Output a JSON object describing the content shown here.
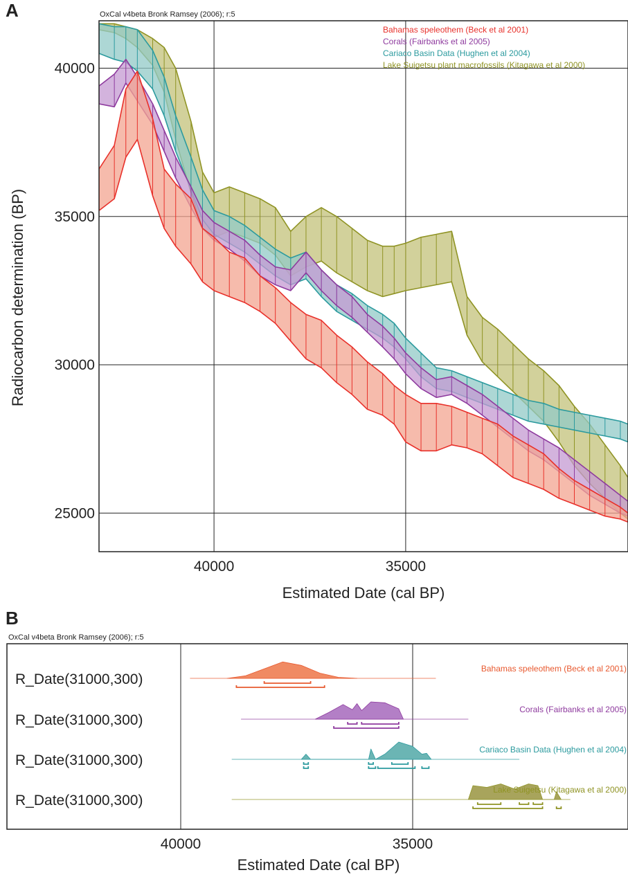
{
  "chart_data": [
    {
      "panel": "A",
      "type": "area",
      "credit": "OxCal v4beta Bronk Ramsey (2006); r:5",
      "xlabel": "Estimated Date (cal BP)",
      "ylabel": "Radiocarbon determination (BP)",
      "xlim": [
        43000,
        29200
      ],
      "ylim": [
        23700,
        41600
      ],
      "xticks": [
        40000,
        35000
      ],
      "yticks": [
        40000,
        35000,
        30000,
        25000
      ],
      "grid": true,
      "legend_position": "top-right",
      "series": [
        {
          "name": "Bahamas speleothem (Beck et al 2001)",
          "color": "#e8302a",
          "fill": "#f3a490",
          "x": [
            43000,
            42600,
            42300,
            42000,
            41600,
            41300,
            41000,
            40600,
            40300,
            40000,
            39600,
            39200,
            38800,
            38400,
            38000,
            37600,
            37200,
            36800,
            36400,
            36000,
            35600,
            35300,
            35000,
            34600,
            34200,
            33800,
            33400,
            33000,
            32600,
            32200,
            31800,
            31400,
            31000,
            30600,
            30200,
            29800,
            29400,
            29200
          ],
          "upper": [
            36600,
            37400,
            39300,
            39900,
            38300,
            36600,
            36100,
            35600,
            34600,
            34300,
            33800,
            33600,
            33000,
            32600,
            32100,
            31700,
            31500,
            31000,
            30600,
            30100,
            29700,
            29300,
            29000,
            28700,
            28700,
            28600,
            28400,
            28200,
            28000,
            27600,
            27300,
            27000,
            26500,
            26100,
            25800,
            25500,
            25200,
            25000
          ],
          "lower": [
            35200,
            35600,
            37000,
            37600,
            35700,
            34600,
            34000,
            33400,
            32800,
            32500,
            32300,
            32100,
            31800,
            31400,
            30800,
            30200,
            29900,
            29400,
            29000,
            28500,
            28300,
            28000,
            27400,
            27100,
            27100,
            27300,
            27200,
            27000,
            26600,
            26200,
            26000,
            25800,
            25500,
            25300,
            25100,
            24900,
            24800,
            24700
          ]
        },
        {
          "name": "Corals (Fairbanks et al 2005)",
          "color": "#8e3a9e",
          "fill": "#c49ad2",
          "x": [
            43000,
            42600,
            42300,
            42000,
            41600,
            41300,
            41000,
            40600,
            40300,
            40000,
            39600,
            39200,
            38800,
            38400,
            38000,
            37600,
            37200,
            36800,
            36400,
            36000,
            35600,
            35300,
            35000,
            34600,
            34200,
            33800,
            33400,
            33000,
            32600,
            32200,
            31800,
            31400,
            31000,
            30600,
            30200,
            29800,
            29400,
            29200
          ],
          "upper": [
            39400,
            39800,
            40300,
            39700,
            38800,
            37900,
            37000,
            36000,
            35200,
            34800,
            34500,
            34200,
            33700,
            33300,
            33200,
            33800,
            33200,
            32700,
            32300,
            31700,
            31300,
            30900,
            30400,
            29900,
            29500,
            29600,
            29300,
            29000,
            28600,
            28200,
            27800,
            27500,
            27200,
            26800,
            26400,
            26000,
            25600,
            25400
          ],
          "lower": [
            38800,
            38700,
            39500,
            38900,
            38100,
            37200,
            36300,
            35300,
            34600,
            34200,
            33900,
            33500,
            33000,
            32700,
            32500,
            33100,
            32500,
            32000,
            31600,
            31100,
            30600,
            30200,
            29700,
            29200,
            28900,
            29000,
            28700,
            28300,
            27900,
            27500,
            27100,
            26800,
            26400,
            26000,
            25600,
            25300,
            25000,
            24900
          ]
        },
        {
          "name": "Cariaco Basin Data (Hughen et al 2004)",
          "color": "#2b9a9e",
          "fill": "#92c9c7",
          "x": [
            43000,
            42600,
            42300,
            42000,
            41600,
            41300,
            41000,
            40600,
            40300,
            40000,
            39600,
            39200,
            38800,
            38400,
            38000,
            37600,
            37200,
            36800,
            36400,
            36000,
            35600,
            35300,
            35000,
            34600,
            34200,
            33800,
            33400,
            33000,
            32600,
            32200,
            31800,
            31400,
            31000,
            30600,
            30200,
            29800,
            29400,
            29200
          ],
          "upper": [
            41500,
            41400,
            41400,
            41300,
            40600,
            39700,
            38400,
            37000,
            35900,
            35200,
            35000,
            34700,
            34300,
            33900,
            33600,
            33800,
            33200,
            32700,
            32400,
            32000,
            31700,
            31400,
            30900,
            30400,
            29900,
            29800,
            29600,
            29400,
            29200,
            29000,
            28800,
            28700,
            28500,
            28400,
            28300,
            28200,
            28100,
            28000
          ],
          "lower": [
            40500,
            40300,
            40200,
            39900,
            39300,
            38400,
            37200,
            35900,
            34900,
            34400,
            34100,
            33800,
            33400,
            33000,
            32700,
            32900,
            32300,
            31800,
            31500,
            31200,
            30900,
            30600,
            30200,
            29600,
            29200,
            29100,
            28900,
            28700,
            28500,
            28300,
            28100,
            28000,
            27900,
            27800,
            27700,
            27600,
            27500,
            27400
          ]
        },
        {
          "name": "Lake Suigetsu plant macrofossils (Kitagawa et al 2000)",
          "color": "#8f9324",
          "fill": "#c3c27a",
          "x": [
            43000,
            42600,
            42300,
            42000,
            41600,
            41300,
            41000,
            40600,
            40300,
            40000,
            39600,
            39200,
            38800,
            38400,
            38000,
            37600,
            37200,
            36800,
            36400,
            36000,
            35600,
            35300,
            35000,
            34600,
            34200,
            33800,
            33400,
            33000,
            32600,
            32200,
            31800,
            31400,
            31000,
            30600,
            30200,
            29800,
            29400,
            29200
          ],
          "upper": [
            41500,
            41500,
            41400,
            41300,
            41000,
            40700,
            40000,
            38200,
            36500,
            35800,
            36000,
            35800,
            35600,
            35300,
            34500,
            35000,
            35300,
            35000,
            34600,
            34200,
            34000,
            34000,
            34100,
            34300,
            34400,
            34500,
            32300,
            31600,
            31200,
            30700,
            30200,
            29800,
            29300,
            28600,
            28000,
            27300,
            26600,
            26200
          ],
          "lower": [
            41300,
            41200,
            41000,
            40700,
            40100,
            39200,
            37600,
            35800,
            34600,
            34300,
            34500,
            34300,
            34100,
            33700,
            33000,
            33300,
            33500,
            33100,
            32800,
            32500,
            32300,
            32400,
            32500,
            32600,
            32700,
            32800,
            31000,
            30100,
            29600,
            29100,
            28600,
            28100,
            27400,
            26600,
            26000,
            25500,
            25000,
            24800
          ]
        }
      ]
    },
    {
      "panel": "B",
      "type": "area",
      "credit": "OxCal v4beta Bronk Ramsey (2006); r:5",
      "xlabel": "Estimated Date (cal BP)",
      "xlim": [
        43000,
        29200
      ],
      "xticks": [
        40000,
        35000
      ],
      "grid": true,
      "rows": [
        {
          "label": "R_Date(31000,300)",
          "name": "Bahamas speleothem (Beck et al 2001)",
          "color": "#e8592f",
          "fill": "#f08a63",
          "line_range": [
            39800,
            34500
          ],
          "density": [
            [
              39000,
              0
            ],
            [
              38600,
              0.15
            ],
            [
              38200,
              0.55
            ],
            [
              37800,
              0.95
            ],
            [
              37400,
              0.75
            ],
            [
              37000,
              0.3
            ],
            [
              36600,
              0.06
            ],
            [
              36200,
              0
            ]
          ],
          "brackets": [
            [
              [
                38200,
                37200
              ]
            ],
            [
              [
                38800,
                36900
              ]
            ]
          ]
        },
        {
          "label": "R_Date(31000,300)",
          "name": "Corals (Fairbanks et al 2005)",
          "color": "#8e3a9e",
          "fill": "#b37fc6",
          "line_range": [
            38700,
            33800
          ],
          "density": [
            [
              37100,
              0
            ],
            [
              36800,
              0.4
            ],
            [
              36500,
              0.85
            ],
            [
              36300,
              0.55
            ],
            [
              36200,
              0.9
            ],
            [
              36100,
              0.5
            ],
            [
              35900,
              1.0
            ],
            [
              35600,
              0.95
            ],
            [
              35300,
              0.6
            ],
            [
              35200,
              0
            ]
          ],
          "brackets": [
            [
              [
                36400,
                36200
              ],
              [
                36100,
                35300
              ]
            ],
            [
              [
                36700,
                35300
              ]
            ]
          ]
        },
        {
          "label": "R_Date(31000,300)",
          "name": "Cariaco Basin Data (Hughen et al 2004)",
          "color": "#2b9a9e",
          "fill": "#6bb5b4",
          "line_range": [
            38900,
            32700
          ],
          "density": [
            [
              37400,
              0
            ],
            [
              37300,
              0.3
            ],
            [
              37200,
              0
            ],
            [
              35950,
              0
            ],
            [
              35900,
              0.6
            ],
            [
              35800,
              0
            ],
            [
              35600,
              0.3
            ],
            [
              35300,
              1.0
            ],
            [
              35000,
              0.75
            ],
            [
              34800,
              0.3
            ],
            [
              34700,
              0.35
            ],
            [
              34600,
              0
            ]
          ],
          "brackets": [
            [
              [
                37350,
                37250
              ],
              [
                35950,
                35850
              ],
              [
                35450,
                35100
              ]
            ],
            [
              [
                37350,
                37250
              ],
              [
                35950,
                35800
              ],
              [
                35750,
                34950
              ],
              [
                34800,
                34650
              ]
            ]
          ]
        },
        {
          "label": "R_Date(31000,300)",
          "name": "Lake Suigetsu (Kitagawa et al 2000)",
          "color": "#8f9324",
          "fill": "#a8a45c",
          "line_range": [
            38900,
            31600
          ],
          "density": [
            [
              33800,
              0
            ],
            [
              33700,
              0.8
            ],
            [
              33400,
              0.7
            ],
            [
              33100,
              0.9
            ],
            [
              32800,
              0.6
            ],
            [
              32500,
              0.9
            ],
            [
              32300,
              0.8
            ],
            [
              32200,
              0
            ],
            [
              31950,
              0
            ],
            [
              31900,
              0.45
            ],
            [
              31800,
              0
            ]
          ],
          "brackets": [
            [
              [
                33600,
                33100
              ],
              [
                32700,
                32500
              ],
              [
                32400,
                32200
              ]
            ],
            [
              [
                33700,
                32200
              ],
              [
                31900,
                31800
              ]
            ]
          ]
        }
      ]
    }
  ],
  "panels": {
    "a": "A",
    "b": "B"
  }
}
